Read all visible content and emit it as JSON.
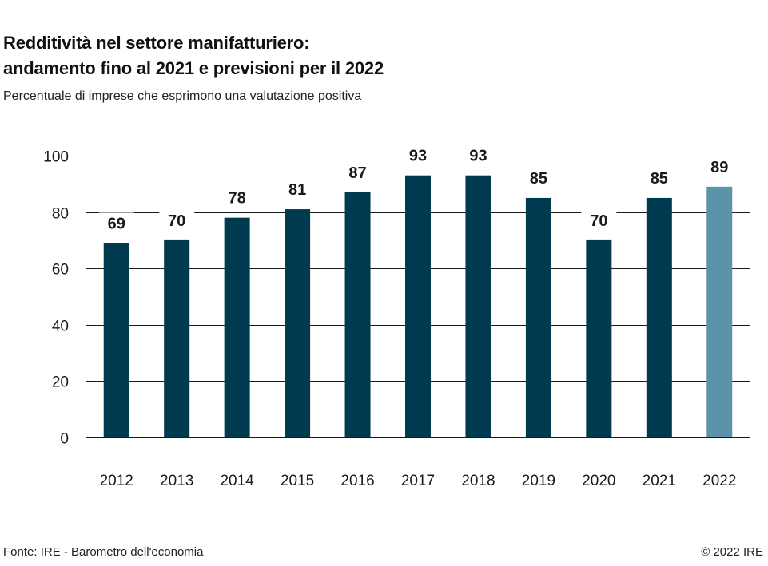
{
  "header": {
    "title_line1": "Redditività nel settore manifatturiero:",
    "title_line2": "andamento fino al 2021 e previsioni per il 2022",
    "subtitle": "Percentuale di imprese che esprimono una valutazione positiva"
  },
  "footer": {
    "source": "Fonte: IRE - Barometro dell'economia",
    "copyright": "© 2022 IRE"
  },
  "colors": {
    "actual": "#003a4f",
    "forecast": "#5b93a8",
    "grid": "#1a1a1a",
    "text": "#1a1a1a"
  },
  "chart_data": {
    "type": "bar",
    "categories": [
      "2012",
      "2013",
      "2014",
      "2015",
      "2016",
      "2017",
      "2018",
      "2019",
      "2020",
      "2021",
      "2022"
    ],
    "values": [
      69,
      70,
      78,
      81,
      87,
      93,
      93,
      85,
      70,
      85,
      89
    ],
    "value_labels": [
      "69",
      "70",
      "78",
      "81",
      "87",
      "93",
      "93",
      "85",
      "70",
      "85",
      "89"
    ],
    "forecast_categories": [
      "2022"
    ],
    "y_ticks": [
      "0",
      "20",
      "40",
      "60",
      "80",
      "100"
    ],
    "ylim": [
      0,
      100
    ],
    "grid": true,
    "legend": false
  }
}
